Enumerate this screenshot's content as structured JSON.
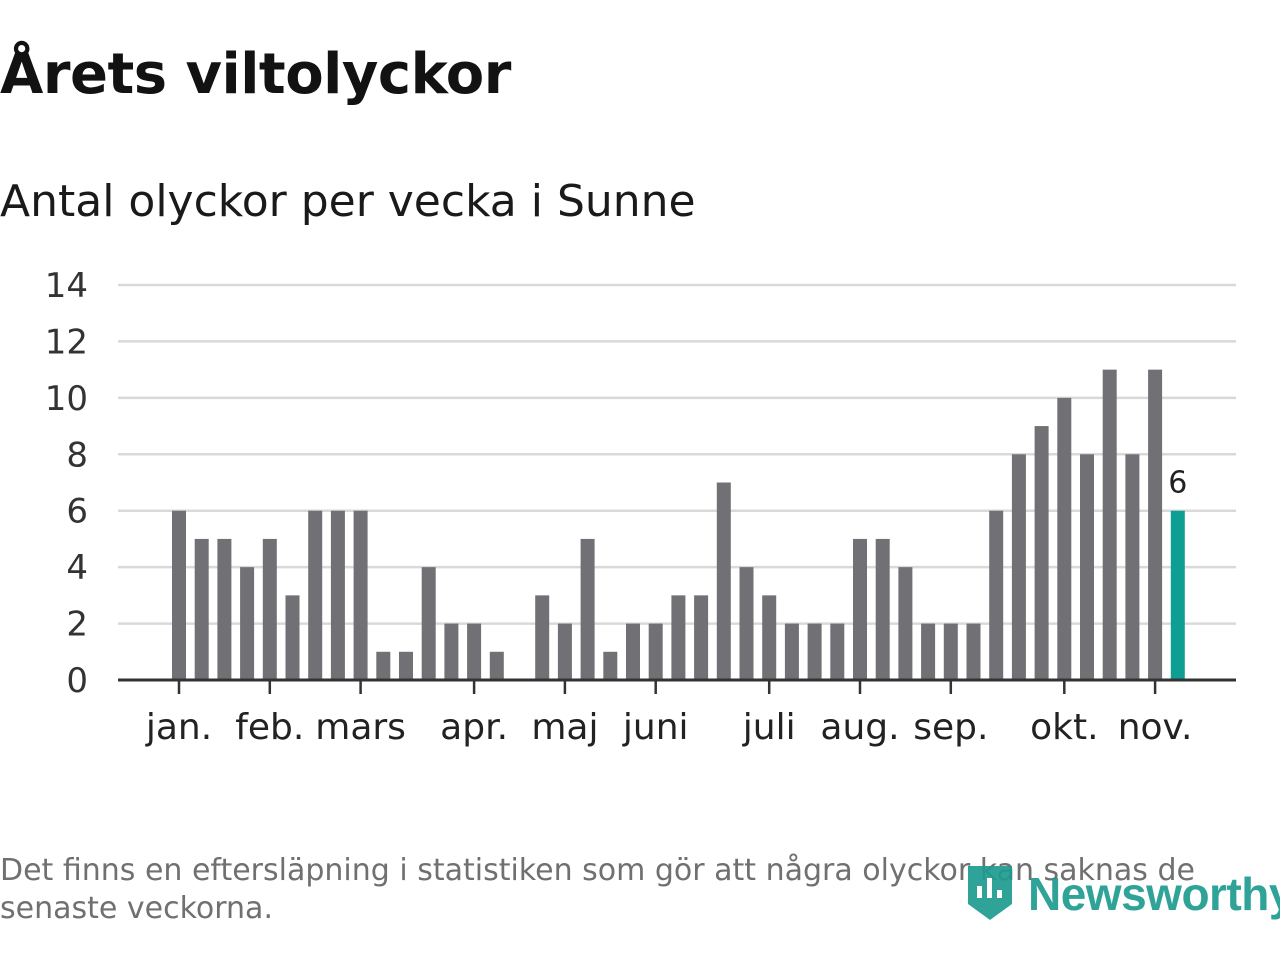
{
  "header": {
    "title": "Årets viltolyckor",
    "subtitle": "Antal olyckor per vecka i Sunne"
  },
  "footer": {
    "note": "Det finns en eftersläpning i statistiken som gör att några olyckor kan saknas de senaste veckorna.",
    "brand": "Newsworthy"
  },
  "colors": {
    "bar": "#717075",
    "highlight": "#0e9e93",
    "grid": "#d9d9d9",
    "axis": "#333333",
    "brand": "#1f9c91"
  },
  "chart_data": {
    "type": "bar",
    "ylim": [
      0,
      14
    ],
    "yticks": [
      0,
      2,
      4,
      6,
      8,
      10,
      12,
      14
    ],
    "grid": true,
    "values": [
      6,
      5,
      5,
      4,
      5,
      3,
      6,
      6,
      6,
      1,
      1,
      4,
      2,
      2,
      1,
      0,
      3,
      2,
      5,
      1,
      2,
      2,
      3,
      3,
      7,
      4,
      3,
      2,
      2,
      2,
      5,
      5,
      4,
      2,
      2,
      2,
      6,
      8,
      9,
      10,
      8,
      11,
      8,
      11,
      6
    ],
    "highlight_index": 44,
    "highlight_label": "6",
    "month_labels": [
      {
        "label": "jan.",
        "bar_index": 0
      },
      {
        "label": "feb.",
        "bar_index": 4
      },
      {
        "label": "mars",
        "bar_index": 8
      },
      {
        "label": "apr.",
        "bar_index": 13
      },
      {
        "label": "maj",
        "bar_index": 17
      },
      {
        "label": "juni",
        "bar_index": 21
      },
      {
        "label": "juli",
        "bar_index": 26
      },
      {
        "label": "aug.",
        "bar_index": 30
      },
      {
        "label": "sep.",
        "bar_index": 34
      },
      {
        "label": "okt.",
        "bar_index": 39
      },
      {
        "label": "nov.",
        "bar_index": 43
      }
    ]
  }
}
